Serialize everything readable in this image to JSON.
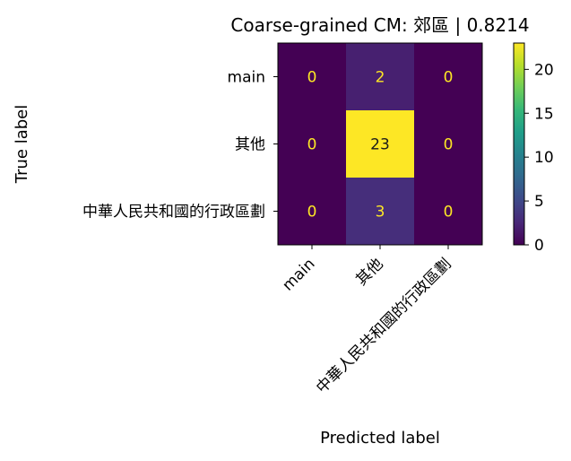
{
  "chart_data": {
    "type": "heatmap",
    "title": "Coarse-grained CM: 郊區 | 0.8214",
    "xlabel": "Predicted label",
    "ylabel": "True label",
    "x_categories": [
      "main",
      "其他",
      "中華人民共和國的行政區劃"
    ],
    "y_categories": [
      "main",
      "其他",
      "中華人民共和國的行政區劃"
    ],
    "matrix": [
      [
        0,
        2,
        0
      ],
      [
        0,
        23,
        0
      ],
      [
        0,
        3,
        0
      ]
    ],
    "colorbar": {
      "min": 0,
      "max": 23,
      "ticks": [
        0,
        5,
        10,
        15,
        20
      ],
      "colormap": "viridis"
    },
    "grid": false
  }
}
